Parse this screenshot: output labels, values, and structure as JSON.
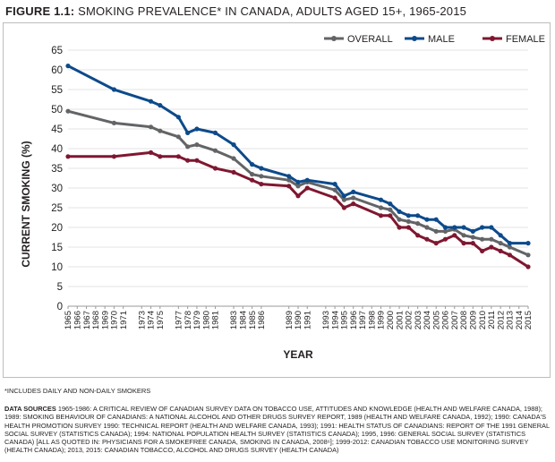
{
  "figure": {
    "label": "FIGURE 1.1:",
    "title": "SMOKING PREVALENCE* IN CANADA, ADULTS AGED 15+, 1965-2015"
  },
  "footnote": "*INCLUDES DAILY AND NON-DAILY SMOKERS",
  "sources": {
    "label": "DATA SOURCES",
    "text": "1965-1986: A CRITICAL REVIEW OF CANADIAN SURVEY DATA ON TOBACCO USE, ATTITUDES AND KNOWLEDGE (HEALTH AND WELFARE CANADA, 1988); 1989: SMOKING BEHAVIOUR OF CANADIANS: A NATIONAL ALCOHOL AND OTHER DRUGS SURVEY REPORT, 1989 (HEALTH AND WELFARE CANADA, 1992); 1990: CANADA'S HEALTH PROMOTION SURVEY 1990: TECHNICAL REPORT (HEALTH AND WELFARE CANADA, 1993); 1991: HEALTH STATUS OF CANADIANS: REPORT OF THE 1991 GENERAL SOCIAL SURVEY (STATISTICS CANADA); 1994: NATIONAL POPULATION HEALTH SURVEY (STATISTICS CANADA); 1995, 1996: GENERAL SOCIAL SURVEY (STATISTICS CANADA) [ALL AS QUOTED IN: PHYSICIANS FOR A SMOKEFREE CANADA, SMOKING IN CANADA, 2008⁶]; 1999-2012: CANADIAN TOBACCO USE MONITORING SURVEY (HEALTH CANADA); 2013, 2015: CANADIAN TOBACCO, ALCOHOL AND DRUGS SURVEY (HEALTH CANADA)"
  },
  "chart_data": {
    "type": "line",
    "title": "SMOKING PREVALENCE* IN CANADA, ADULTS AGED 15+, 1965-2015",
    "xlabel": "YEAR",
    "ylabel": "CURRENT SMOKING (%)",
    "ylim": [
      0,
      65
    ],
    "yticks": [
      0,
      5,
      10,
      15,
      20,
      25,
      30,
      35,
      40,
      45,
      50,
      55,
      60,
      65
    ],
    "xlim": [
      1965,
      2015
    ],
    "xticks": [
      "1965",
      "1966",
      "1967",
      "1968",
      "1969",
      "1970",
      "1971",
      "1973",
      "1974",
      "1975",
      "1977",
      "1978",
      "1979",
      "1980",
      "1981",
      "1983",
      "1984",
      "1985",
      "1986",
      "1989",
      "1990",
      "1991",
      "1993",
      "1994",
      "1995",
      "1996",
      "1997",
      "1998",
      "1999",
      "2000",
      "2001",
      "2002",
      "2003",
      "2004",
      "2005",
      "2006",
      "2007",
      "2008",
      "2009",
      "2010",
      "2011",
      "2012",
      "2013",
      "2014",
      "2015"
    ],
    "grid": true,
    "legend_position": "top-right",
    "series": [
      {
        "name": "OVERALL",
        "color": "#636466",
        "x": [
          1965,
          1970,
          1974,
          1975,
          1977,
          1978,
          1979,
          1981,
          1983,
          1985,
          1986,
          1989,
          1990,
          1991,
          1994,
          1995,
          1996,
          1999,
          2000,
          2001,
          2002,
          2003,
          2004,
          2005,
          2006,
          2007,
          2008,
          2009,
          2010,
          2011,
          2012,
          2013,
          2015
        ],
        "y": [
          49.5,
          46.5,
          45.5,
          44.5,
          43,
          40.5,
          41,
          39.5,
          37.5,
          33.5,
          33,
          32,
          30.5,
          31.5,
          29.5,
          27,
          27.5,
          25,
          24.5,
          22,
          21.5,
          21,
          20,
          19,
          19,
          19.5,
          18,
          17.5,
          17,
          17,
          16,
          15,
          13
        ]
      },
      {
        "name": "MALE",
        "color": "#0d4a8a",
        "x": [
          1965,
          1970,
          1974,
          1975,
          1977,
          1978,
          1979,
          1981,
          1983,
          1985,
          1986,
          1989,
          1990,
          1991,
          1994,
          1995,
          1996,
          1999,
          2000,
          2001,
          2002,
          2003,
          2004,
          2005,
          2006,
          2007,
          2008,
          2009,
          2010,
          2011,
          2012,
          2013,
          2015
        ],
        "y": [
          61,
          55,
          52,
          51,
          48,
          44,
          45,
          44,
          41,
          36,
          35,
          33,
          31.5,
          32,
          31,
          28,
          29,
          27,
          26,
          24,
          23,
          23,
          22,
          22,
          20,
          20,
          20,
          19,
          20,
          20,
          18,
          16,
          16
        ]
      },
      {
        "name": "FEMALE",
        "color": "#7f1730",
        "x": [
          1965,
          1970,
          1974,
          1975,
          1977,
          1978,
          1979,
          1981,
          1983,
          1985,
          1986,
          1989,
          1990,
          1991,
          1994,
          1995,
          1996,
          1999,
          2000,
          2001,
          2002,
          2003,
          2004,
          2005,
          2006,
          2007,
          2008,
          2009,
          2010,
          2011,
          2012,
          2013,
          2015
        ],
        "y": [
          38,
          38,
          39,
          38,
          38,
          37,
          37,
          35,
          34,
          32,
          31,
          30.5,
          28,
          30,
          27.5,
          25,
          26,
          23,
          23,
          20,
          20,
          18,
          17,
          16,
          17,
          18,
          16,
          16,
          14,
          15,
          14,
          13,
          10
        ]
      }
    ]
  }
}
